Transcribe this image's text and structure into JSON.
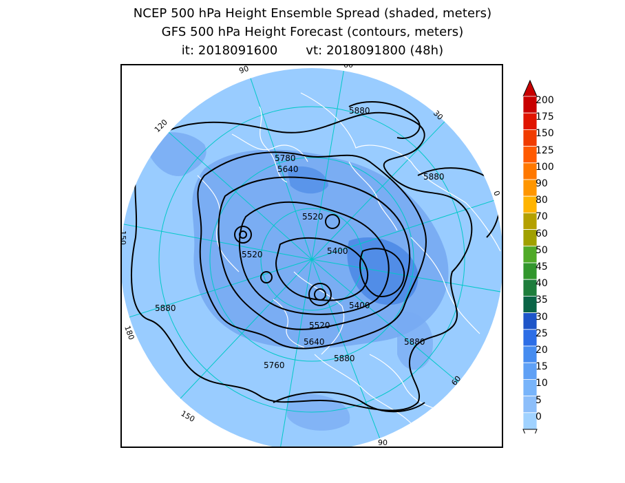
{
  "title": {
    "line1": "NCEP 500 hPa Height Ensemble Spread (shaded, meters)",
    "line2": "GFS 500 hPa Height Forecast (contours, meters)",
    "line3": "it: 2018091600       vt: 2018091800 (48h)"
  },
  "map": {
    "projection": "polar stereographic (north pole)",
    "longitude_labels": [
      "60",
      "30",
      "0",
      "30",
      "60",
      "90",
      "120",
      "150",
      "180",
      "150",
      "120",
      "90"
    ],
    "contour_labels": [
      "5880",
      "5780",
      "5640",
      "5880",
      "5520",
      "5520",
      "5400",
      "5520",
      "5400",
      "5880",
      "5520",
      "5640",
      "5880",
      "5760",
      "5880"
    ],
    "colors": {
      "background_spread": "#99ccff",
      "mid_spread": "#77aaf2",
      "high_spread": "#4d8ae6",
      "grid_lines": "#00c8c8",
      "coastlines": "#ffffff",
      "contours": "#000000"
    }
  },
  "colorbar": {
    "labels": [
      "200",
      "175",
      "150",
      "125",
      "100",
      "90",
      "80",
      "70",
      "60",
      "50",
      "45",
      "40",
      "35",
      "30",
      "25",
      "20",
      "15",
      "10",
      "5",
      "0"
    ],
    "colors": [
      "#c80000",
      "#e01400",
      "#f03c00",
      "#ff5a00",
      "#ff7800",
      "#ff9600",
      "#ffb400",
      "#b4a000",
      "#a0a000",
      "#50aa28",
      "#32962d",
      "#1e7d3c",
      "#0a6446",
      "#1e55c8",
      "#2d6ee6",
      "#468cf0",
      "#5fa0f5",
      "#78b4fa",
      "#8cbefa",
      "#a0d2ff"
    ]
  }
}
